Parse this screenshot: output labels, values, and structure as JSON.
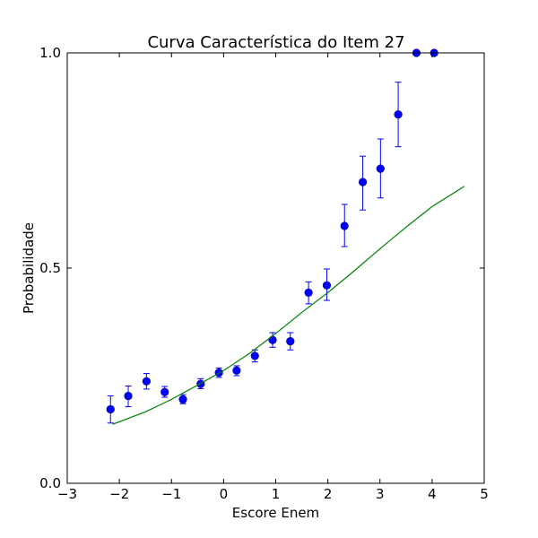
{
  "chart_data": {
    "type": "scatter",
    "title": "Curva Característica do Item 27",
    "xlabel": "Escore Enem",
    "ylabel": "Probabilidade",
    "xlim": [
      -3,
      5
    ],
    "ylim": [
      0.0,
      1.0
    ],
    "x_ticks": [
      -3,
      -2,
      -1,
      0,
      1,
      2,
      3,
      4,
      5
    ],
    "x_tick_labels": [
      "−3",
      "−2",
      "−1",
      "0",
      "1",
      "2",
      "3",
      "4",
      "5"
    ],
    "y_ticks": [
      0.0,
      0.5,
      1.0
    ],
    "y_tick_labels": [
      "0.0",
      "0.5",
      "1.0"
    ],
    "grid": false,
    "series": [
      {
        "kind": "errorbar",
        "color": "#0000ff",
        "points": [
          {
            "x": -2.17,
            "y": 0.172,
            "lo": 0.14,
            "hi": 0.203
          },
          {
            "x": -1.83,
            "y": 0.203,
            "lo": 0.178,
            "hi": 0.226
          },
          {
            "x": -1.48,
            "y": 0.237,
            "lo": 0.219,
            "hi": 0.255
          },
          {
            "x": -1.13,
            "y": 0.212,
            "lo": 0.2,
            "hi": 0.225
          },
          {
            "x": -0.78,
            "y": 0.195,
            "lo": 0.185,
            "hi": 0.206
          },
          {
            "x": -0.44,
            "y": 0.231,
            "lo": 0.22,
            "hi": 0.243
          },
          {
            "x": -0.09,
            "y": 0.257,
            "lo": 0.246,
            "hi": 0.268
          },
          {
            "x": 0.25,
            "y": 0.262,
            "lo": 0.25,
            "hi": 0.273
          },
          {
            "x": 0.6,
            "y": 0.296,
            "lo": 0.282,
            "hi": 0.31
          },
          {
            "x": 0.94,
            "y": 0.333,
            "lo": 0.316,
            "hi": 0.35
          },
          {
            "x": 1.28,
            "y": 0.33,
            "lo": 0.31,
            "hi": 0.35
          },
          {
            "x": 1.63,
            "y": 0.443,
            "lo": 0.417,
            "hi": 0.468
          },
          {
            "x": 1.98,
            "y": 0.46,
            "lo": 0.425,
            "hi": 0.498
          },
          {
            "x": 2.32,
            "y": 0.598,
            "lo": 0.55,
            "hi": 0.648
          },
          {
            "x": 2.67,
            "y": 0.7,
            "lo": 0.635,
            "hi": 0.76
          },
          {
            "x": 3.01,
            "y": 0.731,
            "lo": 0.663,
            "hi": 0.8
          },
          {
            "x": 3.35,
            "y": 0.857,
            "lo": 0.782,
            "hi": 0.932
          },
          {
            "x": 3.7,
            "y": 1.0,
            "lo": 1.0,
            "hi": 1.0
          },
          {
            "x": 4.04,
            "y": 1.0,
            "lo": 1.0,
            "hi": 1.0
          }
        ]
      },
      {
        "kind": "line",
        "color": "#008000",
        "x": [
          -2.13,
          -1.5,
          -1.0,
          -0.5,
          0.0,
          0.5,
          1.0,
          1.5,
          2.0,
          2.5,
          3.0,
          3.5,
          4.0,
          4.62
        ],
        "y": [
          0.137,
          0.166,
          0.195,
          0.228,
          0.262,
          0.302,
          0.348,
          0.397,
          0.443,
          0.493,
          0.545,
          0.595,
          0.643,
          0.69
        ]
      }
    ]
  }
}
